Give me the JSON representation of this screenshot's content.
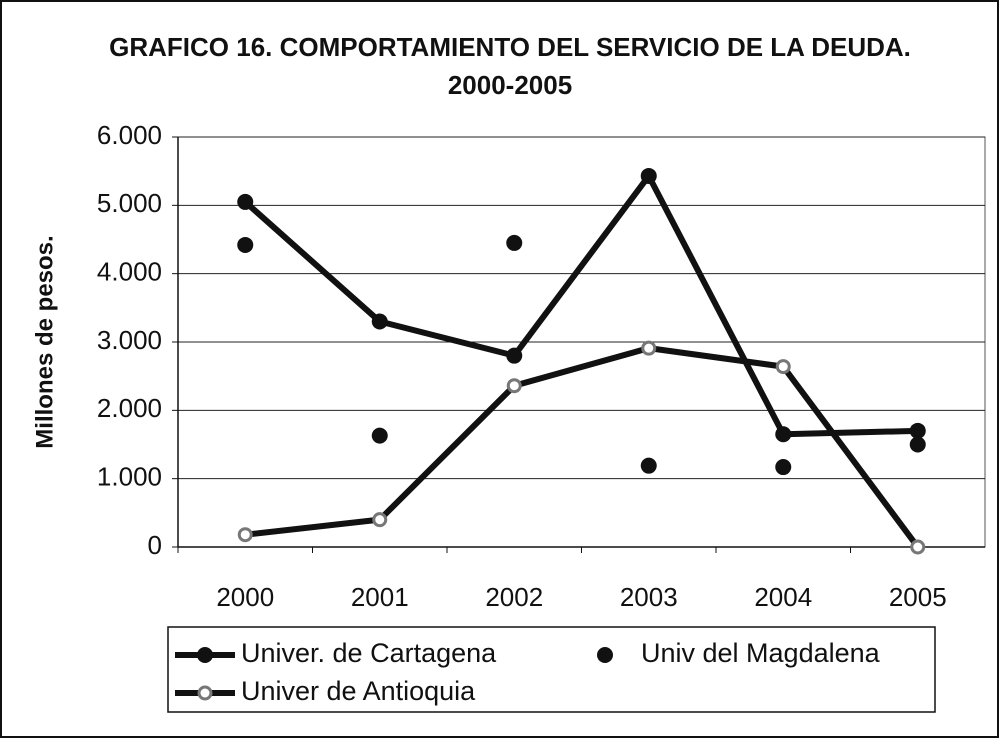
{
  "chart_data": {
    "type": "line",
    "title": "GRAFICO 16. COMPORTAMIENTO DEL SERVICIO DE LA DEUDA. 2000-2005",
    "y_label": "Millones de pesos.",
    "categories": [
      "2000",
      "2001",
      "2002",
      "2003",
      "2004",
      "2005"
    ],
    "series": [
      {
        "name": "Univer. de Cartagena",
        "color": "#111111",
        "line": true,
        "marker": "filled",
        "values": [
          5050,
          3300,
          2800,
          5430,
          1650,
          1700
        ]
      },
      {
        "name": "Univ del Magdalena",
        "color": "#111111",
        "line": false,
        "marker": "filled",
        "values": [
          4420,
          1630,
          4450,
          1190,
          1170,
          1500
        ]
      },
      {
        "name": "Univer de Antioquia",
        "color": "#111111",
        "line": true,
        "marker": "hollow",
        "values": [
          180,
          400,
          2360,
          2910,
          2640,
          0
        ]
      }
    ],
    "ylim": [
      0,
      6000
    ],
    "yticks": [
      0,
      {
        "value": 1000,
        "label": "1.000"
      },
      {
        "value": 2000,
        "label": "2.000"
      },
      {
        "value": 3000,
        "label": "3.000"
      },
      {
        "value": 4000,
        "label": "4.000"
      },
      {
        "value": 5000,
        "label": "5.000"
      },
      {
        "value": 6000,
        "label": "6.000"
      }
    ],
    "grid": true
  }
}
